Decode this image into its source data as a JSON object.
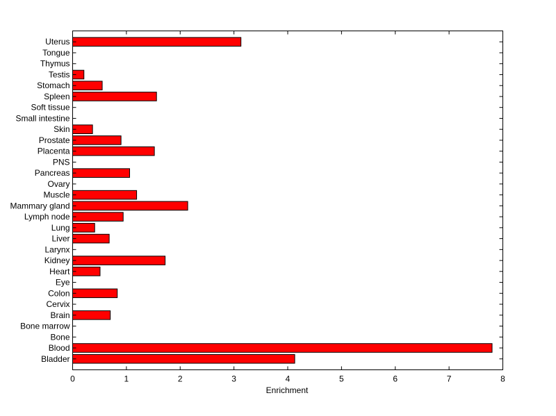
{
  "chart_data": {
    "type": "bar",
    "orientation": "horizontal",
    "title": "",
    "xlabel": "Enrichment",
    "ylabel": "",
    "xlim": [
      0,
      8
    ],
    "xticks": [
      0,
      1,
      2,
      3,
      4,
      5,
      6,
      7,
      8
    ],
    "grid": false,
    "bar_color": "#ff0000",
    "bar_edge_color": "#000000",
    "categories": [
      "Bladder",
      "Blood",
      "Bone",
      "Bone marrow",
      "Brain",
      "Cervix",
      "Colon",
      "Eye",
      "Heart",
      "Kidney",
      "Larynx",
      "Liver",
      "Lung",
      "Lymph node",
      "Mammary gland",
      "Muscle",
      "Ovary",
      "Pancreas",
      "PNS",
      "Placenta",
      "Prostate",
      "Skin",
      "Small intestine",
      "Soft tissue",
      "Spleen",
      "Stomach",
      "Testis",
      "Thymus",
      "Tongue",
      "Uterus"
    ],
    "values": [
      4.13,
      7.8,
      0,
      0,
      0.7,
      0,
      0.83,
      0,
      0.51,
      1.72,
      0,
      0.68,
      0.41,
      0.94,
      2.14,
      1.19,
      0,
      1.06,
      0,
      1.52,
      0.9,
      0.37,
      0,
      0,
      1.56,
      0.55,
      0.21,
      0,
      0,
      3.13
    ]
  }
}
